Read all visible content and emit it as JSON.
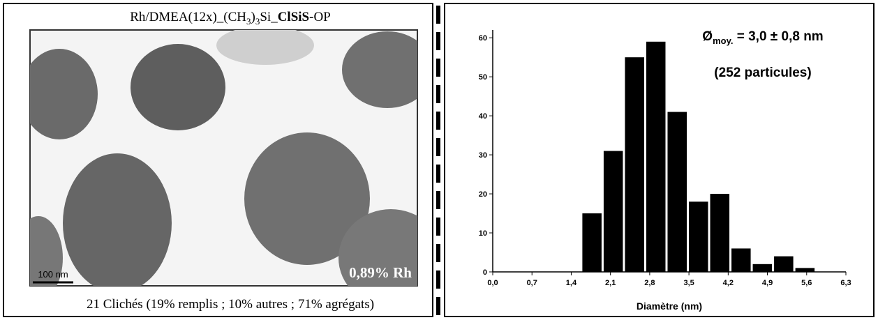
{
  "panel": {
    "title_parts": [
      "Rh/DMEA(12x)_(CH",
      "3",
      ")",
      "3",
      "Si_",
      "ClSiS",
      "-OP"
    ],
    "scale_bar": "100 nm",
    "loading": "0,89% Rh",
    "caption": "21 Clichés (19% remplis ; 10% autres ; 71% agrégats)"
  },
  "chart_data": {
    "type": "histogram",
    "annotations": [
      "Ø",
      "moy.",
      " = 3,0 ± 0,8 nm",
      "(252 particules)"
    ],
    "x_label": "Diamètre (nm)",
    "bins": [
      1.58,
      1.96,
      2.34,
      2.72,
      3.1,
      3.48,
      3.86,
      4.24,
      4.62,
      5.0,
      5.38,
      5.76
    ],
    "values": [
      15,
      31,
      55,
      59,
      41,
      18,
      20,
      6,
      2,
      4,
      1
    ],
    "color": "#000000",
    "xlim": [
      0,
      6.3
    ],
    "ylim": [
      0,
      62
    ],
    "xticks": [
      {
        "value": 0,
        "label": "0,0"
      },
      {
        "value": 0.7,
        "label": "0,7"
      },
      {
        "value": 1.4,
        "label": "1,4"
      },
      {
        "value": 2.1,
        "label": "2,1"
      },
      {
        "value": 2.8,
        "label": "2,8"
      },
      {
        "value": 3.5,
        "label": "3,5"
      },
      {
        "value": 4.2,
        "label": "4,2"
      },
      {
        "value": 4.9,
        "label": "4,9"
      },
      {
        "value": 5.6,
        "label": "5,6"
      },
      {
        "value": 6.3,
        "label": "6,3"
      }
    ],
    "yticks": [
      0,
      10,
      20,
      30,
      40,
      50,
      60
    ]
  }
}
